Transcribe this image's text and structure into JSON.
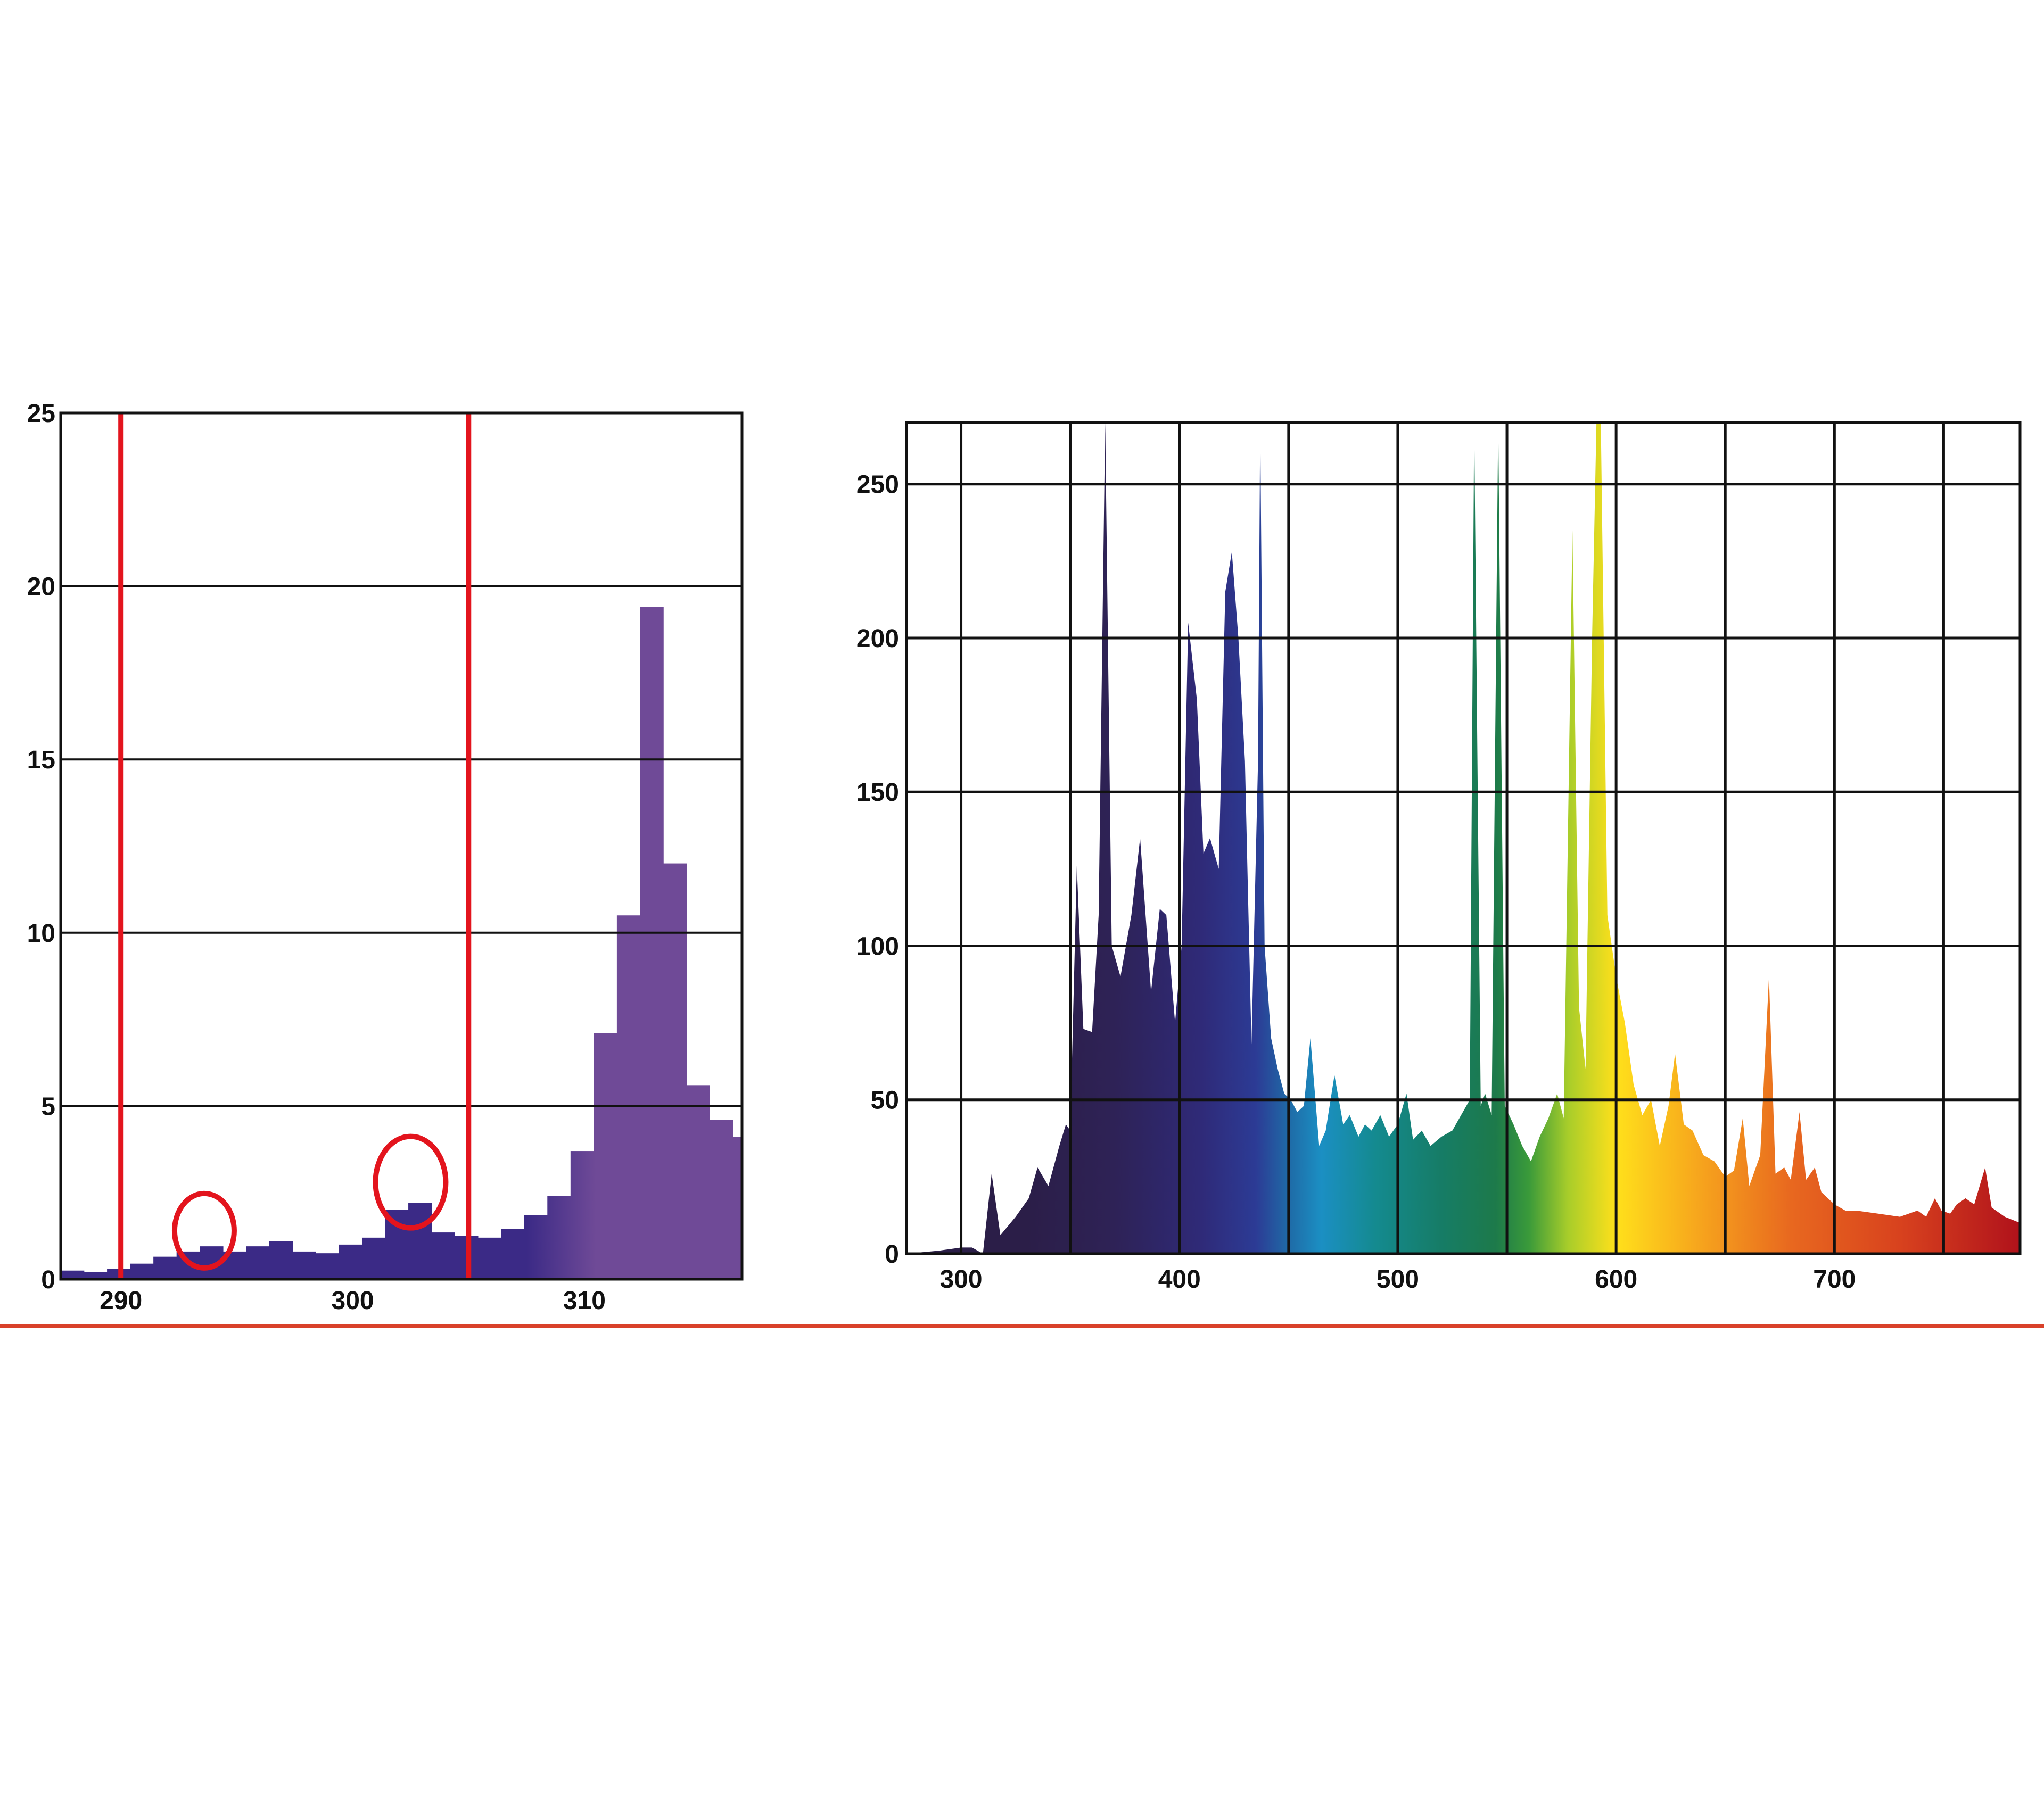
{
  "colors": {
    "background": "#ffffff",
    "grid": "#111111",
    "left_fill_dark": "#3b2a86",
    "left_fill_light": "#6f4a97",
    "marker_red": "#e3141d",
    "divider": "#d9412a"
  },
  "chart_data": [
    {
      "type": "bar",
      "title": "",
      "xlabel": "",
      "ylabel": "",
      "xlim": [
        287.4,
        316.8
      ],
      "ylim": [
        0,
        25
      ],
      "grid": true,
      "x_ticks": [
        290,
        300,
        310
      ],
      "x_tick_labels": [
        "290",
        "300",
        "310"
      ],
      "y_ticks": [
        0,
        5,
        10,
        15,
        20,
        25
      ],
      "y_tick_labels": [
        "0",
        "5",
        "10",
        "15",
        "20",
        "25"
      ],
      "bin_edges": [
        287.4,
        288.4,
        289.4,
        290.4,
        291.4,
        292.4,
        293.4,
        294.4,
        295.4,
        296.4,
        297.4,
        298.4,
        299.4,
        300.4,
        301.4,
        302.4,
        303.4,
        304.4,
        305.4,
        306.4,
        307.4,
        308.4,
        309.4,
        310.4,
        311.4,
        312.4,
        313.4,
        314.4,
        315.4,
        316.4,
        316.8
      ],
      "values": [
        0.25,
        0.2,
        0.3,
        0.45,
        0.65,
        0.8,
        0.95,
        0.8,
        0.95,
        1.1,
        0.8,
        0.75,
        1.0,
        1.2,
        2.0,
        2.2,
        1.35,
        1.25,
        1.2,
        1.45,
        1.85,
        2.4,
        3.7,
        7.1,
        10.5,
        19.4,
        12.0,
        5.6,
        4.6,
        4.1
      ],
      "vertical_lines": [
        290,
        305
      ],
      "circled_points": [
        {
          "x": 293.6,
          "y": 1.4
        },
        {
          "x": 302.5,
          "y": 2.8
        }
      ]
    },
    {
      "type": "area",
      "title": "",
      "xlabel": "",
      "ylabel": "",
      "xlim": [
        275,
        785
      ],
      "ylim": [
        0,
        270
      ],
      "grid": true,
      "x_ticks": [
        300,
        400,
        500,
        600,
        700
      ],
      "x_tick_labels": [
        "300",
        "400",
        "500",
        "600",
        "700"
      ],
      "y_ticks": [
        0,
        50,
        100,
        150,
        200,
        250
      ],
      "y_tick_labels": [
        "0",
        "50",
        "100",
        "150",
        "200",
        "250"
      ],
      "gradient": [
        {
          "nm": 330,
          "color": "#2b1e48"
        },
        {
          "nm": 370,
          "color": "#2e2256"
        },
        {
          "nm": 410,
          "color": "#2f2a78"
        },
        {
          "nm": 435,
          "color": "#2c3b95"
        },
        {
          "nm": 450,
          "color": "#1f6aa6"
        },
        {
          "nm": 465,
          "color": "#1b8fc3"
        },
        {
          "nm": 490,
          "color": "#148a8f"
        },
        {
          "nm": 520,
          "color": "#167c66"
        },
        {
          "nm": 545,
          "color": "#1d7a4a"
        },
        {
          "nm": 560,
          "color": "#3a9a3a"
        },
        {
          "nm": 578,
          "color": "#a8cd2a"
        },
        {
          "nm": 600,
          "color": "#ffe01b"
        },
        {
          "nm": 640,
          "color": "#f6a21d"
        },
        {
          "nm": 680,
          "color": "#e8681f"
        },
        {
          "nm": 730,
          "color": "#d8421e"
        },
        {
          "nm": 785,
          "color": "#b0121b"
        }
      ],
      "points": [
        [
          275,
          0
        ],
        [
          290,
          1
        ],
        [
          300,
          2
        ],
        [
          305,
          2
        ],
        [
          310,
          0
        ],
        [
          314,
          26
        ],
        [
          318,
          6
        ],
        [
          325,
          12
        ],
        [
          331,
          18
        ],
        [
          335,
          28
        ],
        [
          340,
          22
        ],
        [
          345,
          35
        ],
        [
          348,
          42
        ],
        [
          350,
          40
        ],
        [
          353,
          126
        ],
        [
          356,
          73
        ],
        [
          360,
          72
        ],
        [
          363,
          110
        ],
        [
          366,
          270
        ],
        [
          369,
          100
        ],
        [
          373,
          90
        ],
        [
          378,
          110
        ],
        [
          382,
          135
        ],
        [
          387,
          85
        ],
        [
          391,
          112
        ],
        [
          394,
          110
        ],
        [
          398,
          75
        ],
        [
          401,
          100
        ],
        [
          404,
          205
        ],
        [
          408,
          180
        ],
        [
          411,
          130
        ],
        [
          414,
          135
        ],
        [
          418,
          125
        ],
        [
          421,
          215
        ],
        [
          424,
          228
        ],
        [
          427,
          200
        ],
        [
          430,
          160
        ],
        [
          433,
          68
        ],
        [
          436,
          160
        ],
        [
          437,
          270
        ],
        [
          439,
          100
        ],
        [
          442,
          70
        ],
        [
          445,
          60
        ],
        [
          448,
          52
        ],
        [
          451,
          50
        ],
        [
          454,
          46
        ],
        [
          457,
          48
        ],
        [
          460,
          70
        ],
        [
          464,
          35
        ],
        [
          467,
          40
        ],
        [
          471,
          58
        ],
        [
          475,
          42
        ],
        [
          478,
          45
        ],
        [
          482,
          38
        ],
        [
          485,
          42
        ],
        [
          488,
          40
        ],
        [
          492,
          45
        ],
        [
          496,
          38
        ],
        [
          500,
          42
        ],
        [
          504,
          52
        ],
        [
          507,
          37
        ],
        [
          511,
          40
        ],
        [
          515,
          35
        ],
        [
          520,
          38
        ],
        [
          525,
          40
        ],
        [
          529,
          45
        ],
        [
          533,
          50
        ],
        [
          535,
          270
        ],
        [
          538,
          48
        ],
        [
          540,
          52
        ],
        [
          543,
          45
        ],
        [
          546,
          270
        ],
        [
          549,
          48
        ],
        [
          553,
          42
        ],
        [
          557,
          35
        ],
        [
          561,
          30
        ],
        [
          565,
          38
        ],
        [
          569,
          44
        ],
        [
          573,
          52
        ],
        [
          576,
          44
        ],
        [
          580,
          235
        ],
        [
          583,
          80
        ],
        [
          586,
          60
        ],
        [
          589,
          200
        ],
        [
          591,
          270
        ],
        [
          593,
          270
        ],
        [
          596,
          110
        ],
        [
          600,
          90
        ],
        [
          604,
          75
        ],
        [
          608,
          55
        ],
        [
          612,
          45
        ],
        [
          616,
          50
        ],
        [
          620,
          35
        ],
        [
          624,
          48
        ],
        [
          627,
          65
        ],
        [
          631,
          42
        ],
        [
          635,
          40
        ],
        [
          640,
          32
        ],
        [
          645,
          30
        ],
        [
          650,
          25
        ],
        [
          654,
          27
        ],
        [
          658,
          44
        ],
        [
          661,
          22
        ],
        [
          666,
          32
        ],
        [
          670,
          90
        ],
        [
          673,
          26
        ],
        [
          677,
          28
        ],
        [
          680,
          24
        ],
        [
          684,
          46
        ],
        [
          687,
          24
        ],
        [
          691,
          28
        ],
        [
          694,
          20
        ],
        [
          700,
          16
        ],
        [
          705,
          14
        ],
        [
          710,
          14
        ],
        [
          720,
          13
        ],
        [
          730,
          12
        ],
        [
          738,
          14
        ],
        [
          742,
          12
        ],
        [
          746,
          18
        ],
        [
          749,
          14
        ],
        [
          753,
          13
        ],
        [
          756,
          16
        ],
        [
          760,
          18
        ],
        [
          764,
          16
        ],
        [
          769,
          28
        ],
        [
          772,
          15
        ],
        [
          778,
          12
        ],
        [
          785,
          10
        ]
      ]
    }
  ]
}
